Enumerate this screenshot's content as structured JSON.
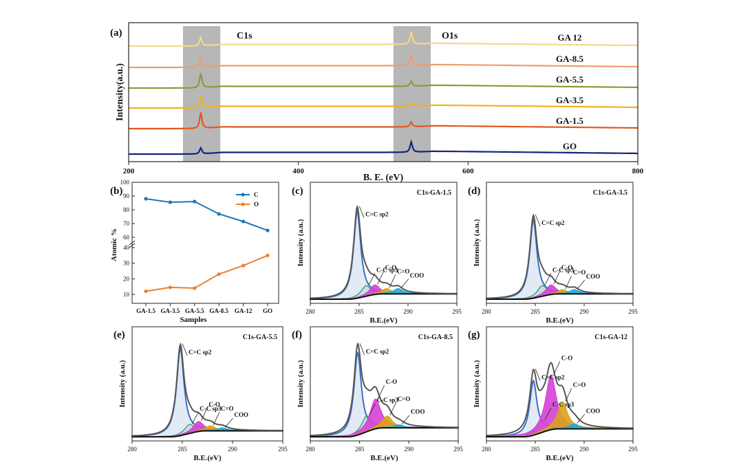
{
  "figure": {
    "panels": {
      "a": {
        "letter": "(a)",
        "xlabel": "B. E. (eV)",
        "ylabel": "Intensity(a.u.)",
        "band1_label": "C1s",
        "band2_label": "O1s"
      },
      "b": {
        "letter": "(b)",
        "xlabel": "Samples",
        "ylabel": "Atomic %"
      },
      "c": {
        "letter": "(c)",
        "title": "C1s-GA-1.5"
      },
      "d": {
        "letter": "(d)",
        "title": "C1s-GA-3.5"
      },
      "e": {
        "letter": "(e)",
        "title": "C1s-GA-5.5"
      },
      "f": {
        "letter": "(f)",
        "title": "C1s-GA-8.5"
      },
      "g": {
        "letter": "(g)",
        "title": "C1s-GA-12"
      }
    },
    "peak_labels": {
      "ccsp2": "C=C sp2",
      "ccsp3": "C-C sp3",
      "co": "C-O",
      "ceqo": "C=O",
      "coo": "COO"
    },
    "hr_xlabel": "B.E.(eV)",
    "hr_ylabel": "Intensity (a.u.)",
    "colors": {
      "GO": "#14237a",
      "GA-1.5": "#e2581c",
      "GA-3.5": "#efb21a",
      "GA-5.5": "#8a9a3a",
      "GA-8.5": "#ef9c6c",
      "GA-12": "#f3d98a",
      "C": "#1f77b4",
      "O": "#ee7f2d",
      "envelope": "#555555",
      "sp2": "#3a6fc4",
      "sp3": "#39a275",
      "co": "#d641d6",
      "ceqo": "#d9a31a",
      "coo": "#22a9d4",
      "background": "#111111",
      "band": "#aaaaaa"
    }
  },
  "chart_data": [
    {
      "type": "line",
      "panel": "(a)",
      "xlabel": "B. E. (eV)",
      "ylabel": "Intensity(a.u.)",
      "xlim": [
        200,
        800
      ],
      "xticks": [
        200,
        400,
        600,
        800
      ],
      "annotations": [
        "C1s",
        "O1s"
      ],
      "shaded_regions": [
        [
          264,
          308
        ],
        [
          512,
          556
        ]
      ],
      "series": [
        {
          "name": "GO",
          "c1s_peak_ev": 285,
          "o1s_peak_ev": 533,
          "c1s_height": 0.5,
          "o1s_height": 0.85
        },
        {
          "name": "GA-1.5",
          "c1s_peak_ev": 285,
          "o1s_peak_ev": 533,
          "c1s_height": 1.3,
          "o1s_height": 0.4
        },
        {
          "name": "GA-3.5",
          "c1s_peak_ev": 285,
          "o1s_peak_ev": 533,
          "c1s_height": 1.0,
          "o1s_height": 0.3
        },
        {
          "name": "GA-5.5",
          "c1s_peak_ev": 285,
          "o1s_peak_ev": 533,
          "c1s_height": 1.2,
          "o1s_height": 0.4
        },
        {
          "name": "GA-8.5",
          "c1s_peak_ev": 285,
          "o1s_peak_ev": 533,
          "c1s_height": 0.8,
          "o1s_height": 0.8
        },
        {
          "name": "GA 12",
          "c1s_peak_ev": 285,
          "o1s_peak_ev": 533,
          "c1s_height": 0.7,
          "o1s_height": 1.0
        }
      ]
    },
    {
      "type": "line",
      "panel": "(b)",
      "xlabel": "Samples",
      "ylabel": "Atomic %",
      "categories": [
        "GA-1.5",
        "GA-3.5",
        "GA-5.5",
        "GA-8.5",
        "GA-12",
        "GO"
      ],
      "series": [
        {
          "name": "C",
          "values": [
            88,
            85.5,
            86,
            77,
            71.5,
            65
          ]
        },
        {
          "name": "O",
          "values": [
            12,
            14.5,
            14,
            23,
            28.5,
            35
          ]
        }
      ],
      "yticks": [
        10,
        20,
        30,
        40,
        60,
        70,
        80,
        90,
        100
      ],
      "axis_break": true,
      "legend": "top-right"
    },
    {
      "type": "line",
      "panel": "(c)",
      "title": "C1s-GA-1.5",
      "xlabel": "B.E.(eV)",
      "ylabel": "Intensity (a.u.)",
      "xlim": [
        280,
        295
      ],
      "xticks": [
        280,
        285,
        290,
        295
      ],
      "components": [
        {
          "name": "C=C sp2",
          "center": 284.8,
          "width": 0.45,
          "height": 0.82
        },
        {
          "name": "C-C sp3",
          "center": 285.7,
          "width": 0.6,
          "height": 0.1
        },
        {
          "name": "C-O",
          "center": 286.6,
          "width": 0.6,
          "height": 0.09
        },
        {
          "name": "C=O",
          "center": 287.8,
          "width": 0.6,
          "height": 0.05
        },
        {
          "name": "COO",
          "center": 289.0,
          "width": 0.6,
          "height": 0.05
        }
      ],
      "background_final": 0.05
    },
    {
      "type": "line",
      "panel": "(d)",
      "title": "C1s-GA-3.5",
      "xlabel": "B.E.(eV)",
      "ylabel": "Intensity (a.u.)",
      "xlim": [
        280,
        295
      ],
      "xticks": [
        280,
        285,
        290,
        295
      ],
      "components": [
        {
          "name": "C=C sp2",
          "center": 284.8,
          "width": 0.45,
          "height": 0.74
        },
        {
          "name": "C-C sp3",
          "center": 285.7,
          "width": 0.6,
          "height": 0.1
        },
        {
          "name": "C-O",
          "center": 286.6,
          "width": 0.6,
          "height": 0.09
        },
        {
          "name": "C=O",
          "center": 287.8,
          "width": 0.6,
          "height": 0.04
        },
        {
          "name": "COO",
          "center": 289.0,
          "width": 0.6,
          "height": 0.04
        }
      ],
      "background_final": 0.05
    },
    {
      "type": "line",
      "panel": "(e)",
      "title": "C1s-GA-5.5",
      "xlabel": "B.E.(eV)",
      "ylabel": "Intensity (a.u.)",
      "xlim": [
        280,
        295
      ],
      "xticks": [
        280,
        285,
        290,
        295
      ],
      "components": [
        {
          "name": "C=C sp2",
          "center": 284.8,
          "width": 0.45,
          "height": 0.88
        },
        {
          "name": "C-C sp3",
          "center": 285.7,
          "width": 0.6,
          "height": 0.09
        },
        {
          "name": "C-O",
          "center": 286.6,
          "width": 0.6,
          "height": 0.1
        },
        {
          "name": "C=O",
          "center": 287.8,
          "width": 0.6,
          "height": 0.05
        },
        {
          "name": "COO",
          "center": 289.0,
          "width": 0.6,
          "height": 0.03
        }
      ],
      "background_final": 0.06
    },
    {
      "type": "line",
      "panel": "(f)",
      "title": "C1s-GA-8.5",
      "xlabel": "B.E.(eV)",
      "ylabel": "Intensity (a.u.)",
      "xlim": [
        280,
        295
      ],
      "xticks": [
        280,
        285,
        290,
        295
      ],
      "components": [
        {
          "name": "C=C sp2",
          "center": 284.8,
          "width": 0.45,
          "height": 0.83
        },
        {
          "name": "C-C sp3",
          "center": 285.7,
          "width": 0.6,
          "height": 0.16
        },
        {
          "name": "C-O",
          "center": 286.6,
          "width": 0.65,
          "height": 0.3
        },
        {
          "name": "C=O",
          "center": 287.8,
          "width": 0.6,
          "height": 0.12
        },
        {
          "name": "COO",
          "center": 289.0,
          "width": 0.6,
          "height": 0.03
        }
      ],
      "background_final": 0.09
    },
    {
      "type": "line",
      "panel": "(g)",
      "title": "C1s-GA-12",
      "xlabel": "B.E.(eV)",
      "ylabel": "Intensity (a.u.)",
      "xlim": [
        280,
        295
      ],
      "xticks": [
        280,
        285,
        290,
        295
      ],
      "components": [
        {
          "name": "C=C sp2",
          "center": 284.8,
          "width": 0.45,
          "height": 0.55
        },
        {
          "name": "C-C sp3",
          "center": 285.7,
          "width": 0.6,
          "height": 0.12
        },
        {
          "name": "C-O",
          "center": 286.6,
          "width": 0.65,
          "height": 0.55
        },
        {
          "name": "C=O",
          "center": 287.8,
          "width": 0.6,
          "height": 0.27
        },
        {
          "name": "COO",
          "center": 289.0,
          "width": 0.6,
          "height": 0.05
        }
      ],
      "background_final": 0.08
    }
  ]
}
